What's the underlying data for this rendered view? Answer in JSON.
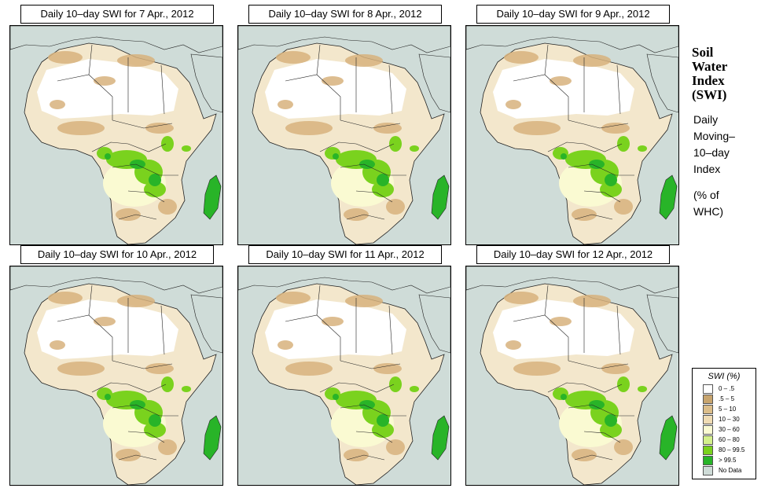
{
  "panels": [
    {
      "title": "Daily 10–day SWI for  7 Apr., 2012"
    },
    {
      "title": "Daily 10–day SWI for  8 Apr., 2012"
    },
    {
      "title": "Daily 10–day SWI for  9 Apr., 2012"
    },
    {
      "title": "Daily 10–day SWI for  10 Apr., 2012"
    },
    {
      "title": "Daily 10–day SWI for  11 Apr., 2012"
    },
    {
      "title": "Daily 10–day SWI for  12 Apr., 2012"
    }
  ],
  "sidebar": {
    "title_lines": [
      "Soil",
      "Water",
      "Index",
      "(SWI)"
    ],
    "desc_lines": [
      "Daily",
      "Moving–",
      "10–day",
      "Index"
    ],
    "unit_lines": [
      "(% of",
      "WHC)"
    ]
  },
  "legend": {
    "title": "SWI (%)",
    "items": [
      {
        "label": "0 – .5",
        "color": "#ffffff"
      },
      {
        "label": ".5 – 5",
        "color": "#c8a56e"
      },
      {
        "label": "5 – 10",
        "color": "#dcbe8a"
      },
      {
        "label": "10 – 30",
        "color": "#f0dcb4"
      },
      {
        "label": "30 – 60",
        "color": "#fafad2"
      },
      {
        "label": "60 – 80",
        "color": "#d4f08c"
      },
      {
        "label": "80 – 99.5",
        "color": "#7ad21e"
      },
      {
        "label": "> 99.5",
        "color": "#28b428"
      },
      {
        "label": "No Data",
        "color": "#cfdcd8"
      }
    ]
  },
  "colors": {
    "ocean": "#cfdcd8",
    "land_dry": "#f3e7cc",
    "sahara": "#ffffff",
    "brown": "#d7b27c",
    "wet": "#7ad21e",
    "saturated": "#28b428",
    "moist": "#fafad2",
    "border": "#222222"
  }
}
